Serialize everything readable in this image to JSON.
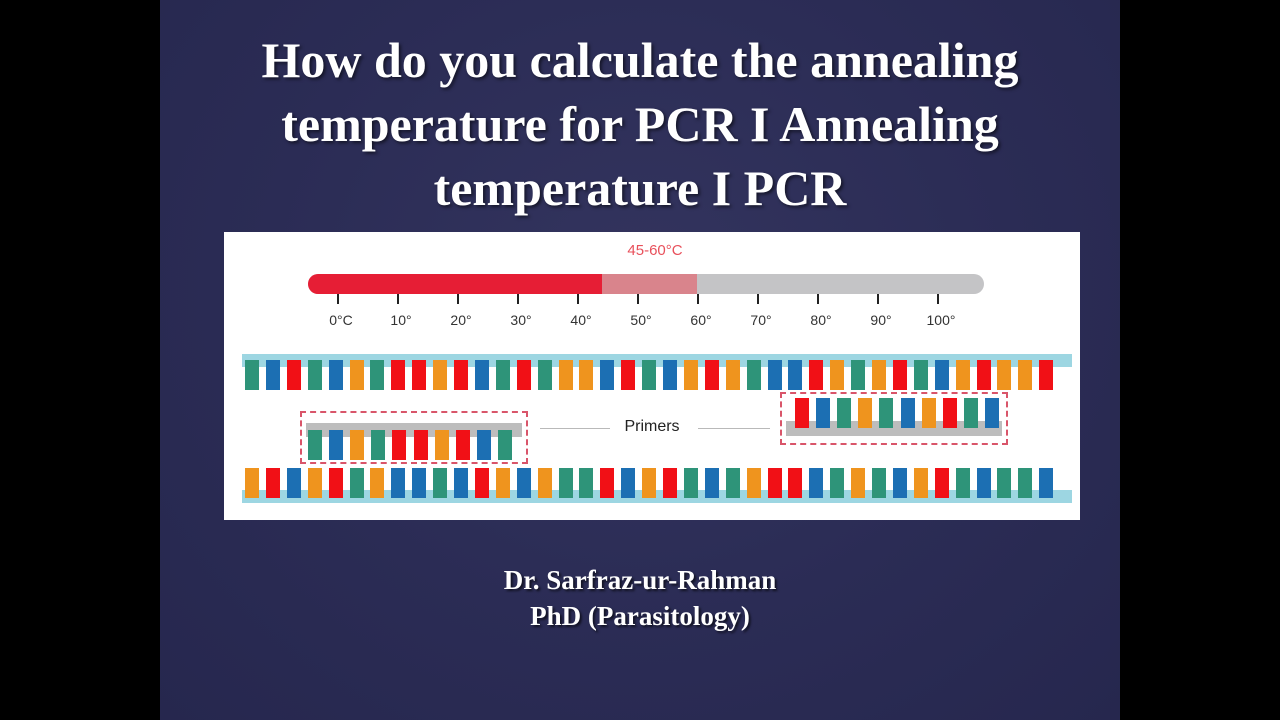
{
  "slide": {
    "title_lines": [
      "How do you calculate the annealing",
      "temperature for PCR I Annealing",
      "temperature I PCR"
    ],
    "author": {
      "name": "Dr. Sarfraz-ur-Rahman",
      "credential": "PhD (Parasitology)"
    }
  },
  "diagram": {
    "range_label": "45-60°C",
    "scale_ticks": [
      "0°C",
      "10°",
      "20°",
      "30°",
      "40°",
      "50°",
      "60°",
      "70°",
      "80°",
      "90°",
      "100°"
    ],
    "primers_label": "Primers",
    "colors": {
      "G": "#2e9479",
      "B": "#1c6fb3",
      "R": "#f11016",
      "O": "#ef941e",
      "hot": "#e61e35",
      "zone": "#d9848c",
      "cool": "#c4c4c6",
      "backbone": "#9dd6e2",
      "primer_outline": "#d9556a"
    },
    "top_strand": "GBRGBOGRRORBGRGOOBRGBOROGBBROGORGBOROOR",
    "bottom_strand": "ORBORGOBBGBROBOGGRBORGBGORRBGOGBORGBGGB",
    "left_primer": "GBOGRRORBG",
    "right_primer": "RBGOGBORGB"
  }
}
